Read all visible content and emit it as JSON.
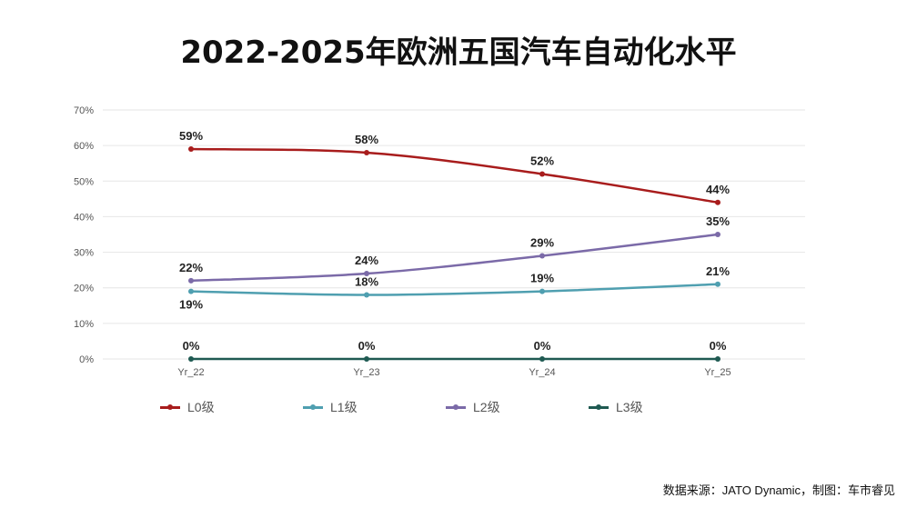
{
  "title": "2022-2025年欧洲五国汽车自动化水平",
  "source": "数据来源：JATO Dynamic，制图：车市睿见",
  "chart_data": {
    "type": "line",
    "title": "2022-2025年欧洲五国汽车自动化水平",
    "categories": [
      "Yr_22",
      "Yr_23",
      "Yr_24",
      "Yr_25"
    ],
    "ylim": [
      0,
      70
    ],
    "yticks": [
      "0%",
      "10%",
      "20%",
      "30%",
      "40%",
      "50%",
      "60%",
      "70%"
    ],
    "grid": true,
    "legend_position": "bottom",
    "series": [
      {
        "name": "L0级",
        "color": "#a81c1c",
        "values": [
          59,
          58,
          52,
          44
        ],
        "labels": [
          "59%",
          "58%",
          "52%",
          "44%"
        ]
      },
      {
        "name": "L1级",
        "color": "#4f9fb0",
        "values": [
          19,
          18,
          19,
          21
        ],
        "labels": [
          "19%",
          "18%",
          "19%",
          "21%"
        ]
      },
      {
        "name": "L2级",
        "color": "#7b6aa8",
        "values": [
          22,
          24,
          29,
          35
        ],
        "labels": [
          "22%",
          "24%",
          "29%",
          "35%"
        ]
      },
      {
        "name": "L3级",
        "color": "#1f5a52",
        "values": [
          0,
          0,
          0,
          0
        ],
        "labels": [
          "0%",
          "0%",
          "0%",
          "0%"
        ]
      }
    ]
  }
}
